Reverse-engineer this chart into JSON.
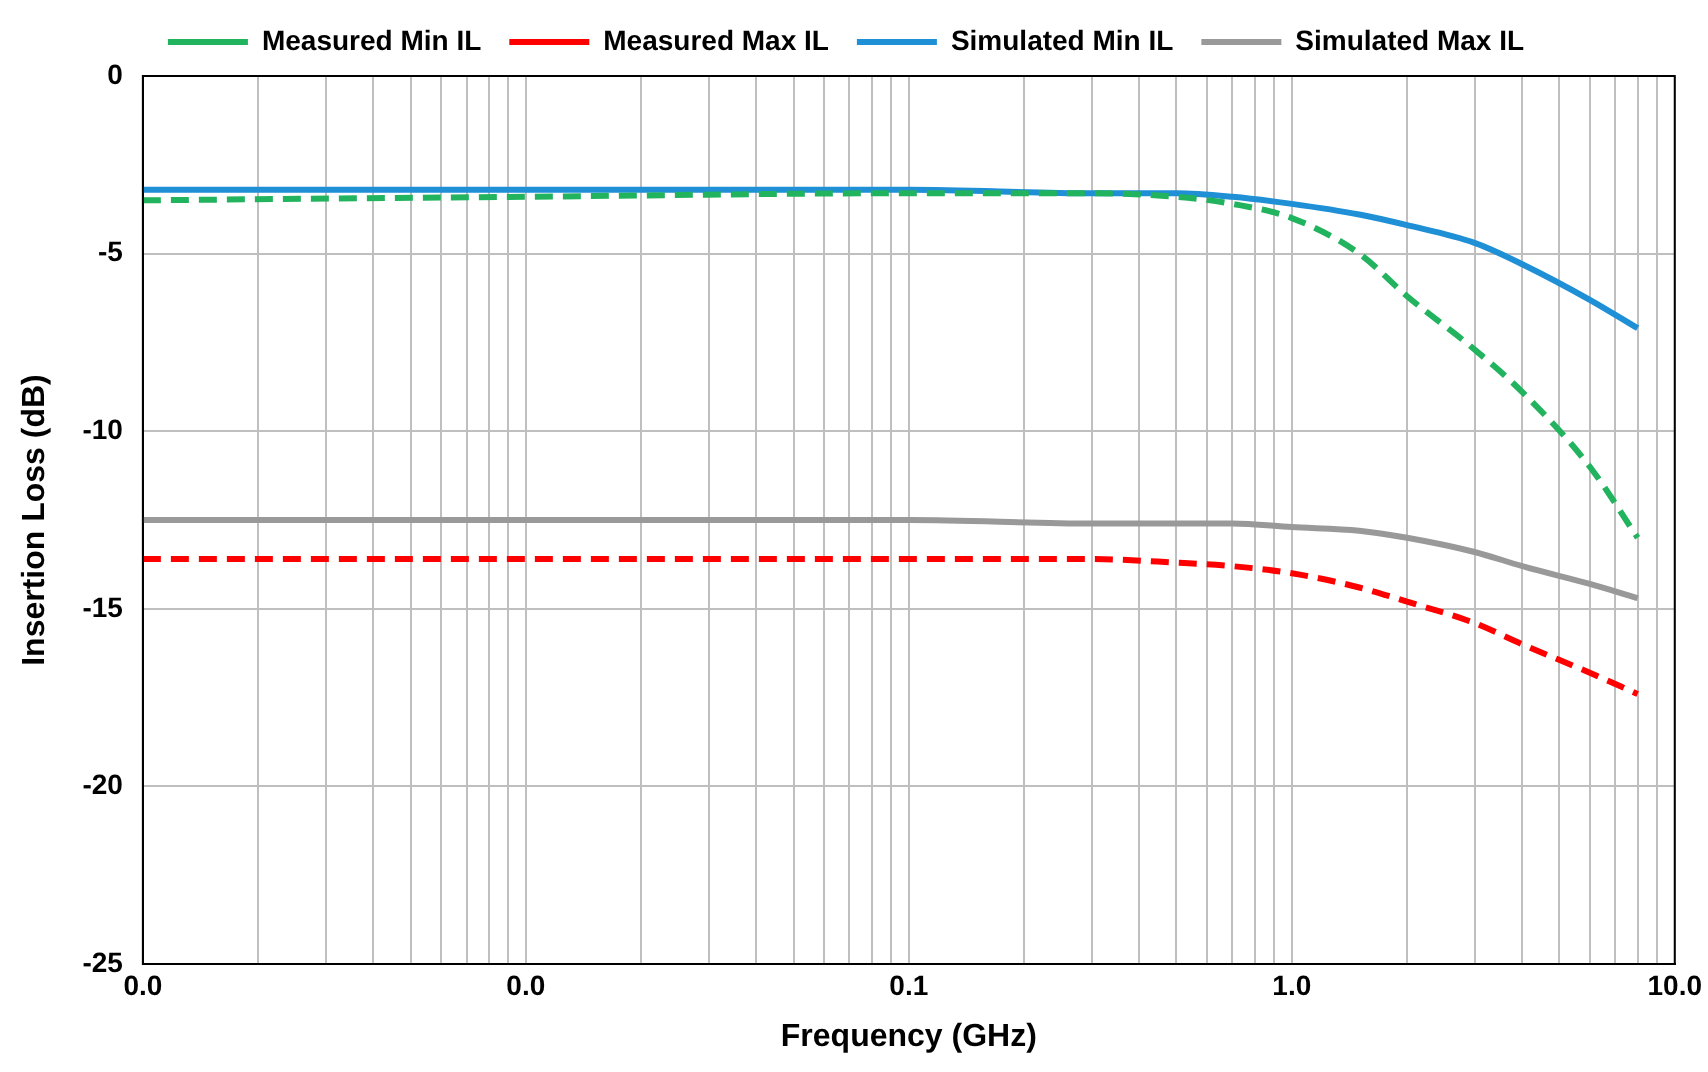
{
  "chart_data": {
    "type": "line",
    "xlabel": "Frequency (GHz)",
    "ylabel": "Insertion Loss (dB)",
    "log": "x",
    "grid": true,
    "legend": "top",
    "marker": "none",
    "xlim": [
      0.001,
      10
    ],
    "xticks": [
      {
        "value": 0.001,
        "label": "0.0"
      },
      {
        "value": 0.002,
        "label": null
      },
      {
        "value": 0.003,
        "label": null
      },
      {
        "value": 0.004,
        "label": null
      },
      {
        "value": 0.005,
        "label": null
      },
      {
        "value": 0.006,
        "label": null
      },
      {
        "value": 0.007,
        "label": null
      },
      {
        "value": 0.008,
        "label": null
      },
      {
        "value": 0.009,
        "label": null
      },
      {
        "value": 0.01,
        "label": "0.0"
      },
      {
        "value": 0.02,
        "label": null
      },
      {
        "value": 0.03,
        "label": null
      },
      {
        "value": 0.04,
        "label": null
      },
      {
        "value": 0.05,
        "label": null
      },
      {
        "value": 0.06,
        "label": null
      },
      {
        "value": 0.07,
        "label": null
      },
      {
        "value": 0.08,
        "label": null
      },
      {
        "value": 0.09,
        "label": null
      },
      {
        "value": 0.1,
        "label": "0.1"
      },
      {
        "value": 0.2,
        "label": null
      },
      {
        "value": 0.3,
        "label": null
      },
      {
        "value": 0.4,
        "label": null
      },
      {
        "value": 0.5,
        "label": null
      },
      {
        "value": 0.6,
        "label": null
      },
      {
        "value": 0.7,
        "label": null
      },
      {
        "value": 0.8,
        "label": null
      },
      {
        "value": 0.9,
        "label": null
      },
      {
        "value": 1,
        "label": "1.0"
      },
      {
        "value": 2,
        "label": null
      },
      {
        "value": 3,
        "label": null
      },
      {
        "value": 4,
        "label": null
      },
      {
        "value": 5,
        "label": null
      },
      {
        "value": 6,
        "label": null
      },
      {
        "value": 7,
        "label": null
      },
      {
        "value": 8,
        "label": null
      },
      {
        "value": 9,
        "label": null
      },
      {
        "value": 10,
        "label": "10.0"
      }
    ],
    "ylim": [
      -25,
      0
    ],
    "yticks": [
      -25,
      -20,
      -15,
      -10,
      -5,
      0
    ],
    "x": [
      0.001,
      0.01,
      0.1,
      0.3,
      0.5,
      0.7,
      1,
      1.5,
      2,
      3,
      4,
      6,
      8
    ],
    "series": [
      {
        "name": "Measured Min IL",
        "color": "#22b35e",
        "line_style": "dashed",
        "values": [
          -3.5,
          -3.4,
          -3.3,
          -3.3,
          -3.4,
          -3.6,
          -4,
          -5,
          -6.2,
          -7.7,
          -8.9,
          -11,
          -13
        ]
      },
      {
        "name": "Measured Max IL",
        "color": "#ff0000",
        "line_style": "dashed",
        "values": [
          -13.6,
          -13.6,
          -13.6,
          -13.6,
          -13.7,
          -13.8,
          -14,
          -14.4,
          -14.8,
          -15.4,
          -16,
          -16.8,
          -17.4
        ]
      },
      {
        "name": "Simulated Min IL",
        "color": "#1f8fd6",
        "line_style": "solid",
        "values": [
          -3.2,
          -3.2,
          -3.2,
          -3.3,
          -3.3,
          -3.4,
          -3.6,
          -3.9,
          -4.2,
          -4.7,
          -5.3,
          -6.3,
          -7.1
        ]
      },
      {
        "name": "Simulated Max IL",
        "color": "#999999",
        "line_style": "solid",
        "values": [
          -12.5,
          -12.5,
          -12.5,
          -12.6,
          -12.6,
          -12.6,
          -12.7,
          -12.8,
          -13,
          -13.4,
          -13.8,
          -14.3,
          -14.7
        ]
      }
    ]
  }
}
